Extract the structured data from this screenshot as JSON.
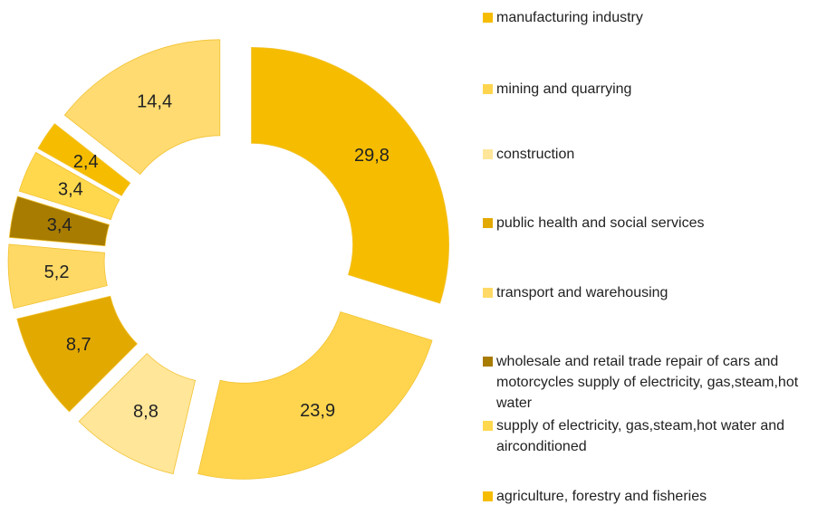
{
  "chart_data": {
    "type": "donut",
    "categories": [
      "manufacturing industry",
      "mining and quarrying",
      "construction",
      "public health and social services",
      "transport and warehousing",
      "wholesale and retail trade repair of cars and motorcycles supply of electricity, gas,steam,hot water",
      "supply of electricity, gas,steam,hot water and airconditioned",
      "agriculture, forestry and fisheries",
      null
    ],
    "values": [
      29.8,
      23.9,
      8.8,
      8.7,
      5.2,
      3.4,
      3.4,
      2.4,
      14.4
    ],
    "value_labels": [
      "29,8",
      "23,9",
      "8,8",
      "8,7",
      "5,2",
      "3,4",
      "3,4",
      "2,4",
      "14,4"
    ],
    "colors": [
      "#f6bd00",
      "#ffd54f",
      "#ffe699",
      "#e2a900",
      "#ffd966",
      "#a87c00",
      "#ffd84d",
      "#f6bd00",
      "#ffdb72"
    ]
  }
}
